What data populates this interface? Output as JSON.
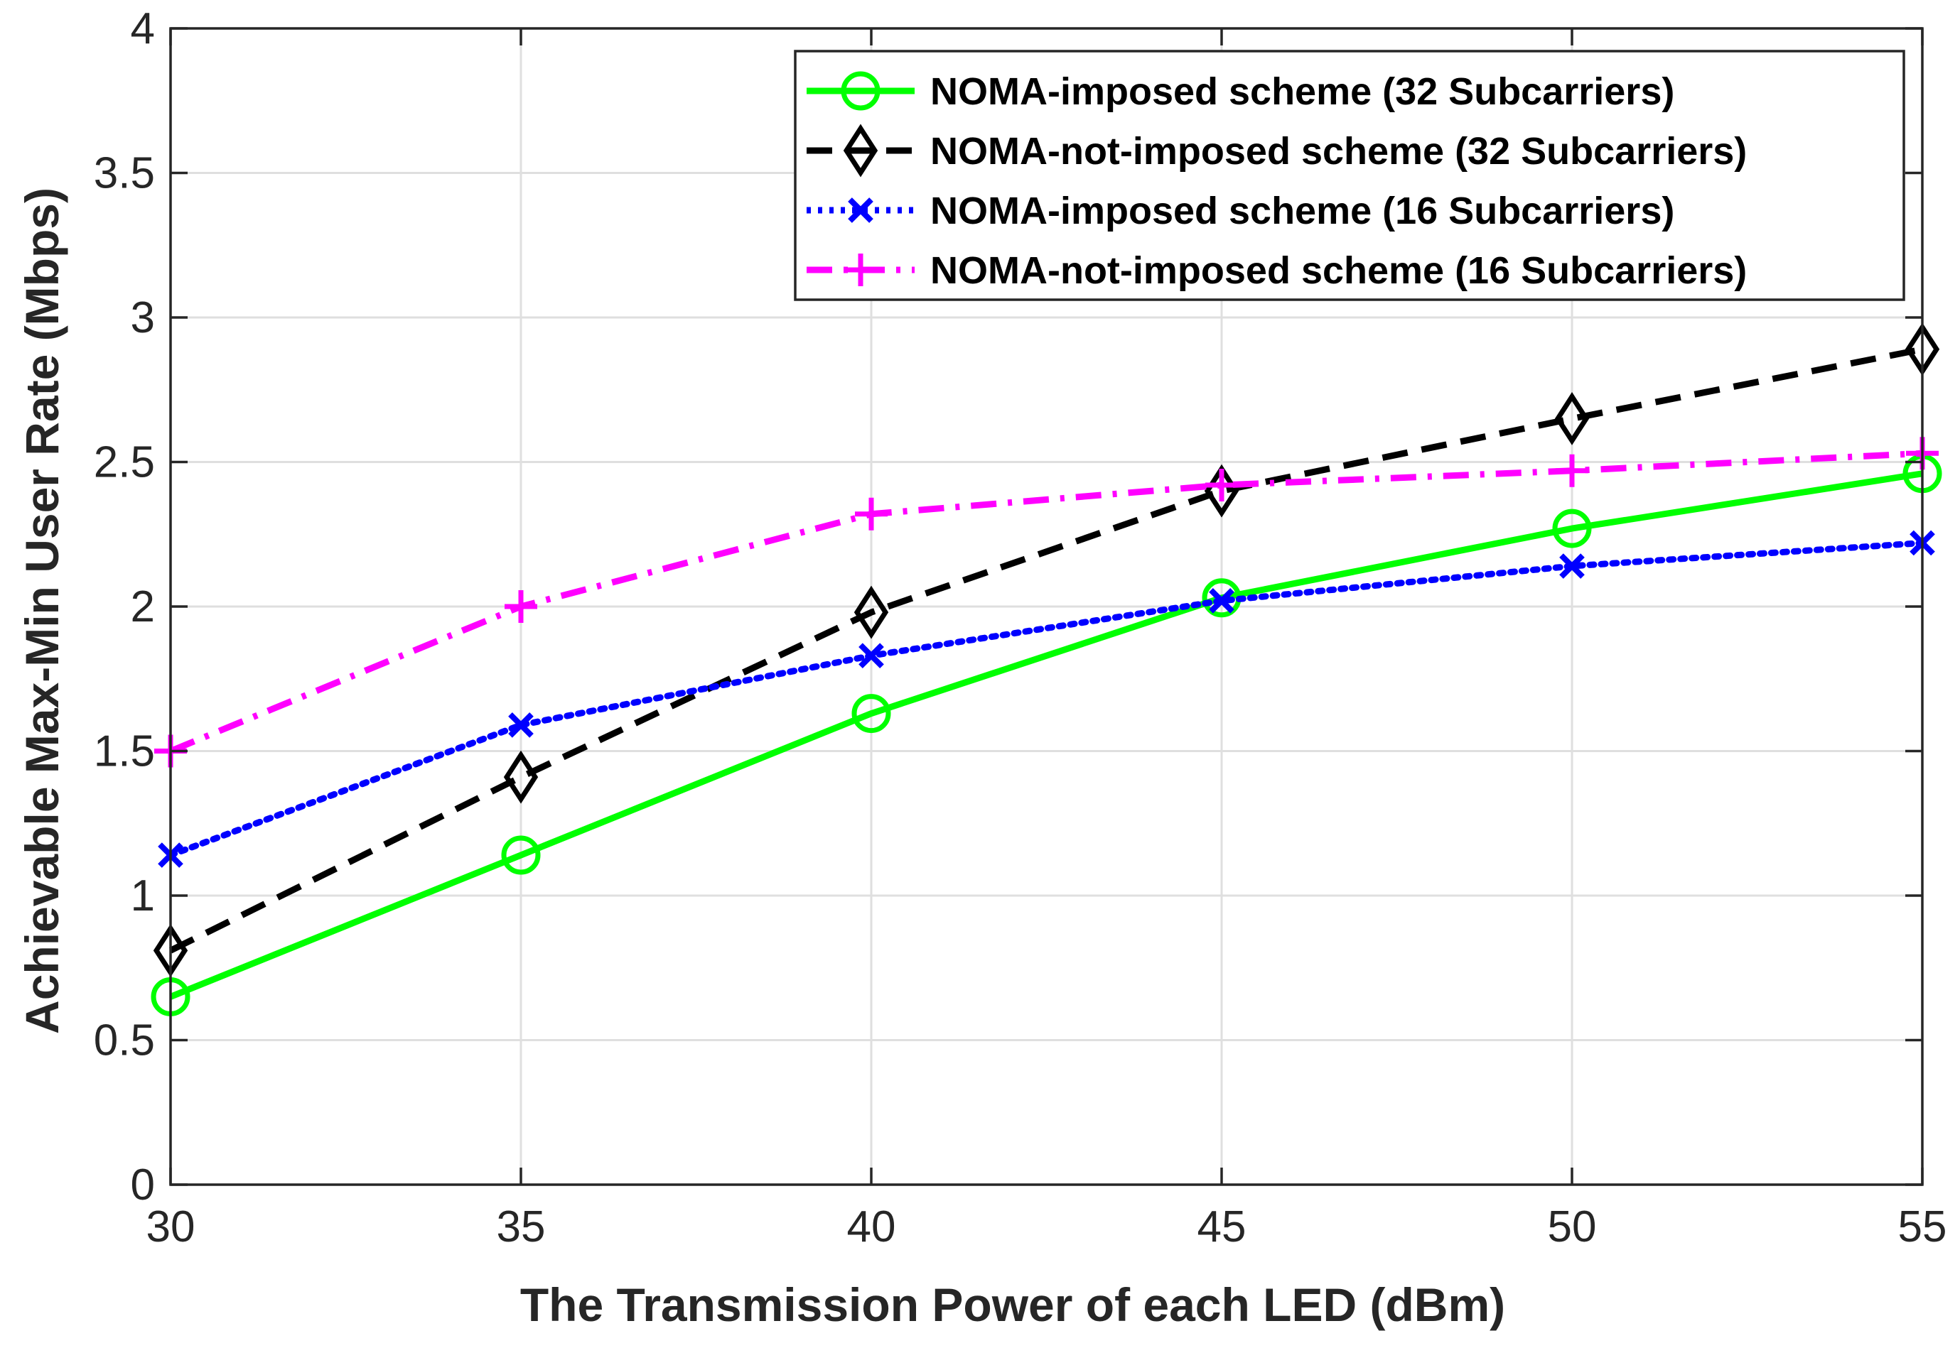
{
  "chart_data": {
    "type": "line",
    "title": "",
    "xlabel": "The Transmission Power of each LED (dBm)",
    "ylabel": "Achievable Max-Min User Rate (Mbps)",
    "x": [
      30,
      35,
      40,
      45,
      50,
      55
    ],
    "xlim": [
      30,
      55
    ],
    "ylim": [
      0,
      4
    ],
    "xticks": [
      30,
      35,
      40,
      45,
      50,
      55
    ],
    "yticks": [
      0,
      0.5,
      1,
      1.5,
      2,
      2.5,
      3,
      3.5,
      4
    ],
    "xtick_labels": [
      "30",
      "35",
      "40",
      "45",
      "50",
      "55"
    ],
    "ytick_labels": [
      "0",
      "0.5",
      "1",
      "1.5",
      "2",
      "2.5",
      "3",
      "3.5",
      "4"
    ],
    "grid": true,
    "legend_position": "top-right",
    "series": [
      {
        "name": "NOMA-imposed scheme (32 Subcarriers)",
        "values": [
          0.65,
          1.14,
          1.63,
          2.03,
          2.27,
          2.46
        ],
        "color": "#00ff00",
        "line_style": "solid",
        "marker": "circle"
      },
      {
        "name": "NOMA-not-imposed scheme (32 Subcarriers)",
        "values": [
          0.81,
          1.41,
          1.98,
          2.4,
          2.65,
          2.89
        ],
        "color": "#000000",
        "line_style": "dashed",
        "marker": "diamond"
      },
      {
        "name": "NOMA-imposed scheme (16 Subcarriers)",
        "values": [
          1.14,
          1.59,
          1.83,
          2.02,
          2.14,
          2.22
        ],
        "color": "#0000ff",
        "line_style": "dotted",
        "marker": "x"
      },
      {
        "name": "NOMA-not-imposed scheme (16 Subcarriers)",
        "values": [
          1.5,
          2.0,
          2.32,
          2.42,
          2.47,
          2.53
        ],
        "color": "#ff00ff",
        "line_style": "dashdot",
        "marker": "plus"
      }
    ]
  }
}
